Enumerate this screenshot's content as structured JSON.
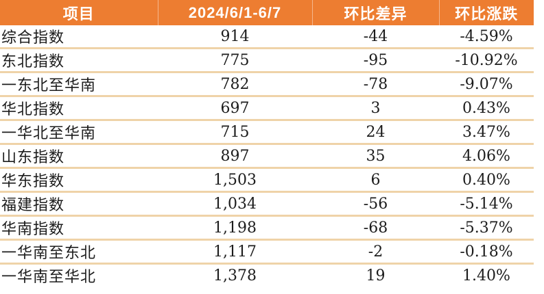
{
  "colors": {
    "header_bg": "#ED7D31",
    "header_text": "#FFFFFF",
    "row_divider": "#EFD3A8",
    "body_text": "#1C1C1C",
    "body_bg": "#FFFFFF"
  },
  "chart_data": {
    "type": "table",
    "columns": [
      "项目",
      "2024/6/1-6/7",
      "环比差异",
      "环比涨跌"
    ],
    "rows": [
      [
        "综合指数",
        "914",
        "-44",
        "-4.59%"
      ],
      [
        "东北指数",
        "775",
        "-95",
        "-10.92%"
      ],
      [
        "一东北至华南",
        "782",
        "-78",
        "-9.07%"
      ],
      [
        "华北指数",
        "697",
        "3",
        "0.43%"
      ],
      [
        "一华北至华南",
        "715",
        "24",
        "3.47%"
      ],
      [
        "山东指数",
        "897",
        "35",
        "4.06%"
      ],
      [
        "华东指数",
        "1,503",
        "6",
        "0.40%"
      ],
      [
        "福建指数",
        "1,034",
        "-56",
        "-5.14%"
      ],
      [
        "华南指数",
        "1,198",
        "-68",
        "-5.37%"
      ],
      [
        "一华南至东北",
        "1,117",
        "-2",
        "-0.18%"
      ],
      [
        "一华南至华北",
        "1,378",
        "19",
        "1.40%"
      ]
    ]
  }
}
